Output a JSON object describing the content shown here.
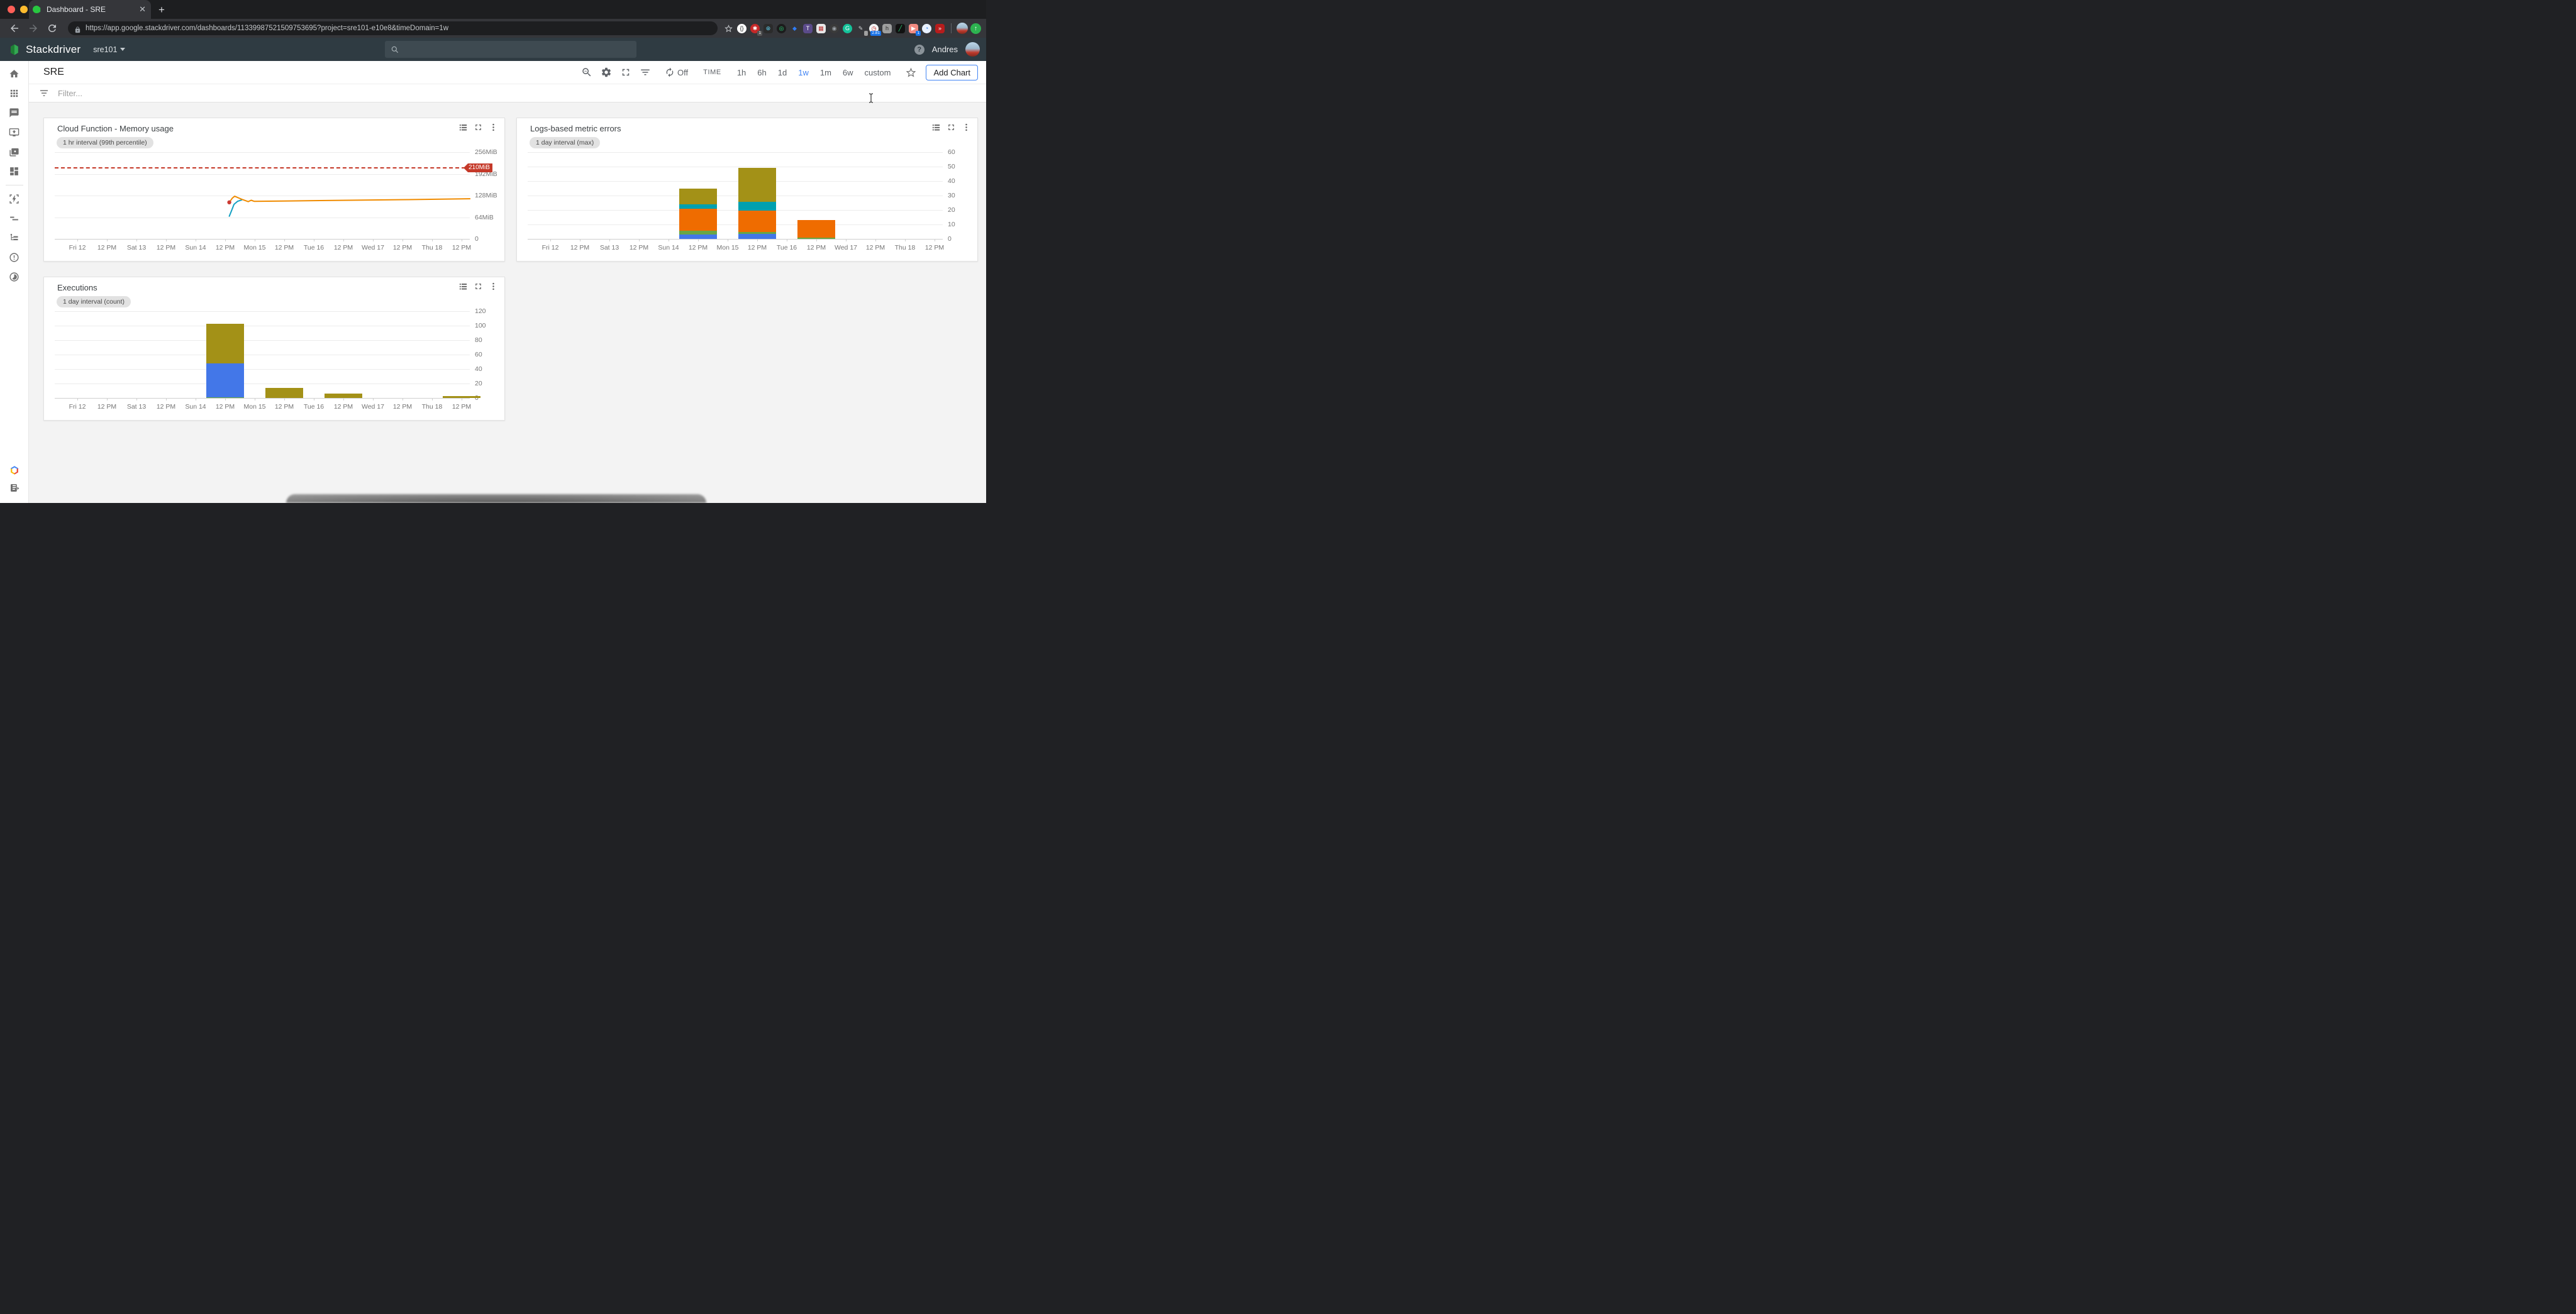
{
  "browser": {
    "tab_title": "Dashboard - SRE",
    "url": "https://app.google.stackdriver.com/dashboards/11339987521509753695?project=sre101-e10e8&timeDomain=1w",
    "extensions": [
      {
        "name": "code-extension",
        "bg": "#ffffff",
        "fg": "#222222",
        "glyph": "{}",
        "round": true
      },
      {
        "name": "blocker-extension",
        "bg": "#c62828",
        "fg": "#ffffff",
        "glyph": "✱",
        "round": true,
        "badge": "1",
        "badge_bg": "#555555"
      },
      {
        "name": "react-devtools-extension",
        "bg": "#2b2b2b",
        "fg": "#61dafb",
        "glyph": "⊛"
      },
      {
        "name": "recorder-extension",
        "bg": "#1c1c1c",
        "fg": "#2bd97c",
        "glyph": "◎",
        "round": true
      },
      {
        "name": "dropbox-extension",
        "bg": "#35363a",
        "fg": "#2f7cf6",
        "glyph": "◆"
      },
      {
        "name": "notes-extension",
        "bg": "#5b4b8a",
        "fg": "#ffffff",
        "glyph": "T"
      },
      {
        "name": "screenshot-extension",
        "bg": "#e8e8e8",
        "fg": "#b33",
        "glyph": "▦"
      },
      {
        "name": "swirl-extension",
        "bg": "#3a3a3a",
        "fg": "#9aa0a6",
        "glyph": "◉",
        "round": true
      },
      {
        "name": "grammarly-extension",
        "bg": "#15c39a",
        "fg": "#ffffff",
        "glyph": "G",
        "round": true
      },
      {
        "name": "pen-extension",
        "bg": "#35363a",
        "fg": "#d0d3d6",
        "glyph": "✎",
        "badge": "·",
        "badge_bg": "#9e9e9e"
      },
      {
        "name": "speedtest-extension",
        "bg": "#f1f3f4",
        "fg": "#c5221f",
        "glyph": "◷",
        "round": true,
        "badge": "2.81",
        "badge_bg": "#1a73e8"
      },
      {
        "name": "honey-extension",
        "bg": "#9e9e9e",
        "fg": "#2b2b2b",
        "glyph": "h"
      },
      {
        "name": "colorpicker-extension",
        "bg": "#111111",
        "fg": "#2bd97c",
        "glyph": "╱"
      },
      {
        "name": "video-extension",
        "bg": "#f28b82",
        "fg": "#ffffff",
        "glyph": "▶",
        "badge": "1",
        "badge_bg": "#1a73e8"
      },
      {
        "name": "audio-extension",
        "bg": "#e8f0fe",
        "fg": "#1a73e8",
        "glyph": "◔",
        "round": true
      },
      {
        "name": "forward-extension",
        "bg": "#b71c1c",
        "fg": "#ffffff",
        "glyph": "»"
      }
    ]
  },
  "header": {
    "brand": "Stackdriver",
    "project": "sre101",
    "user": "Andres",
    "help_glyph": "?"
  },
  "dashboard": {
    "title": "SRE",
    "refresh_off_label": "Off",
    "time_label": "TIME",
    "time_ranges": [
      {
        "label": "1h",
        "active": false
      },
      {
        "label": "6h",
        "active": false
      },
      {
        "label": "1d",
        "active": false
      },
      {
        "label": "1w",
        "active": true
      },
      {
        "label": "1m",
        "active": false
      },
      {
        "label": "6w",
        "active": false
      },
      {
        "label": "custom",
        "active": false
      }
    ],
    "add_chart_label": "Add Chart",
    "filter_placeholder": "Filter...",
    "accent_color": "#4285f4"
  },
  "sidebar": {
    "items_top": [
      "home",
      "apps-grid",
      "event-log",
      "uptime-checks",
      "groups",
      "dashboards"
    ],
    "items_bottom": [
      "debug",
      "trace",
      "logs",
      "error-reporting",
      "profiler"
    ],
    "footer_items": [
      "gcp-logo",
      "release-notes"
    ]
  },
  "chart_data": [
    {
      "type": "line",
      "title": "Cloud Function - Memory usage",
      "subtitle": "1 hr interval (99th percentile)",
      "unit": "MiB",
      "ylim": [
        0,
        256
      ],
      "y_ticks": [
        {
          "v": 256,
          "label": "256MiB"
        },
        {
          "v": 192,
          "label": "192MiB"
        },
        {
          "v": 128,
          "label": "128MiB"
        },
        {
          "v": 64,
          "label": "64MiB"
        },
        {
          "v": 0,
          "label": "0"
        }
      ],
      "threshold": {
        "value": 210,
        "label": "210MiB",
        "color": "#c53929"
      },
      "x_note": "x values are days since Fri 12 00:00",
      "x_tick_labels": [
        "Fri 12",
        "12 PM",
        "Sat 13",
        "12 PM",
        "Sun 14",
        "12 PM",
        "Mon 15",
        "12 PM",
        "Tue 16",
        "12 PM",
        "Wed 17",
        "12 PM",
        "Thu 18",
        "12 PM"
      ],
      "series": [
        {
          "name": "teal-series",
          "color": "#14a0c2",
          "points": [
            [
              2.57,
              67
            ],
            [
              2.61,
              84
            ],
            [
              2.65,
              102
            ],
            [
              2.71,
              111
            ],
            [
              2.78,
              115
            ]
          ]
        },
        {
          "name": "orange-series",
          "color": "#f08b00",
          "points": [
            [
              2.57,
              108
            ],
            [
              2.62,
              120
            ],
            [
              2.66,
              126
            ],
            [
              2.78,
              117
            ],
            [
              2.89,
              110
            ],
            [
              2.94,
              114
            ],
            [
              2.99,
              111
            ],
            [
              3.6,
              112
            ],
            [
              4.6,
              114
            ],
            [
              5.6,
              116
            ],
            [
              6.64,
              118.5
            ]
          ]
        }
      ],
      "marker": {
        "x": 2.57,
        "y": 108,
        "color": "#cc3b33"
      },
      "grid": true,
      "legend": "none"
    },
    {
      "type": "bar",
      "title": "Logs-based metric errors",
      "subtitle": "1 day interval (max)",
      "ylim": [
        0,
        60
      ],
      "y_ticks": [
        {
          "v": 60,
          "label": "60"
        },
        {
          "v": 50,
          "label": "50"
        },
        {
          "v": 40,
          "label": "40"
        },
        {
          "v": 30,
          "label": "30"
        },
        {
          "v": 20,
          "label": "20"
        },
        {
          "v": 10,
          "label": "10"
        },
        {
          "v": 0,
          "label": "0"
        }
      ],
      "x_tick_labels": [
        "Fri 12",
        "12 PM",
        "Sat 13",
        "12 PM",
        "Sun 14",
        "12 PM",
        "Mon 15",
        "12 PM",
        "Tue 16",
        "12 PM",
        "Wed 17",
        "12 PM",
        "Thu 18",
        "12 PM"
      ],
      "bars": [
        {
          "x_day": 2.5,
          "x_label": "Sun 14 12 PM",
          "total": 35,
          "segments": [
            {
              "color": "#4377e8",
              "value": 3
            },
            {
              "color": "#69a644",
              "value": 2.5
            },
            {
              "color": "#ef6c00",
              "value": 15.5
            },
            {
              "color": "#00a0af",
              "value": 3
            },
            {
              "color": "#a39117",
              "value": 11
            }
          ]
        },
        {
          "x_day": 3.5,
          "x_label": "Mon 15 12 PM",
          "total": 49,
          "segments": [
            {
              "color": "#4377e8",
              "value": 3.5
            },
            {
              "color": "#69a644",
              "value": 1.5
            },
            {
              "color": "#ef6c00",
              "value": 14.5
            },
            {
              "color": "#00a0af",
              "value": 6
            },
            {
              "color": "#a39117",
              "value": 23.5
            }
          ]
        },
        {
          "x_day": 4.5,
          "x_label": "Tue 16 12 PM",
          "total": 13,
          "segments": [
            {
              "color": "#69a644",
              "value": 1
            },
            {
              "color": "#ef6c00",
              "value": 12
            }
          ]
        }
      ],
      "grid": true,
      "legend": "none"
    },
    {
      "type": "bar",
      "title": "Executions",
      "subtitle": "1 day interval (count)",
      "ylim": [
        0,
        120
      ],
      "y_ticks": [
        {
          "v": 120,
          "label": "120"
        },
        {
          "v": 100,
          "label": "100"
        },
        {
          "v": 80,
          "label": "80"
        },
        {
          "v": 60,
          "label": "60"
        },
        {
          "v": 40,
          "label": "40"
        },
        {
          "v": 20,
          "label": "20"
        },
        {
          "v": 0,
          "label": "0"
        }
      ],
      "x_tick_labels": [
        "Fri 12",
        "12 PM",
        "Sat 13",
        "12 PM",
        "Sun 14",
        "12 PM",
        "Mon 15",
        "12 PM",
        "Tue 16",
        "12 PM",
        "Wed 17",
        "12 PM",
        "Thu 18",
        "12 PM"
      ],
      "bars": [
        {
          "x_day": 2.5,
          "x_label": "Sun 14 12 PM",
          "total": 103,
          "segments": [
            {
              "color": "#69a644",
              "value": 1
            },
            {
              "color": "#4377e8",
              "value": 47
            },
            {
              "color": "#a39117",
              "value": 55
            }
          ]
        },
        {
          "x_day": 3.5,
          "x_label": "Mon 15 12 PM",
          "total": 13.5,
          "segments": [
            {
              "color": "#a39117",
              "value": 13.5
            }
          ]
        },
        {
          "x_day": 4.5,
          "x_label": "Tue 16 12 PM",
          "total": 6,
          "segments": [
            {
              "color": "#a39117",
              "value": 6
            }
          ]
        },
        {
          "x_day": 6.5,
          "x_label": "Thu 18 12 PM",
          "total": 3,
          "segments": [
            {
              "color": "#a39117",
              "value": 3
            }
          ]
        }
      ],
      "grid": true,
      "legend": "none"
    }
  ]
}
